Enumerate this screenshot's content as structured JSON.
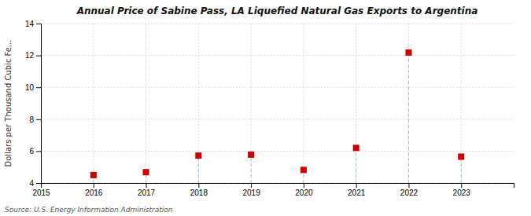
{
  "chart_data": {
    "type": "scatter",
    "title": "Annual Price of Sabine Pass, LA Liquefied Natural Gas Exports to Argentina",
    "y_label": "Dollars per Thousand Cubic Fe...",
    "annotations": [
      "Source: U.S. Energy Information Administration"
    ],
    "x": [
      2016,
      2017,
      2018,
      2019,
      2020,
      2021,
      2022,
      2023
    ],
    "values": [
      4.5,
      4.68,
      5.72,
      5.78,
      4.82,
      6.2,
      12.18,
      5.65
    ],
    "color": "#CC0000",
    "marker": "square",
    "xlim": [
      2015,
      2024
    ],
    "ylim": [
      4,
      14
    ],
    "xticks": [
      2015,
      2016,
      2017,
      2018,
      2019,
      2020,
      2021,
      2022,
      2023
    ],
    "yticks": [
      4,
      6,
      8,
      10,
      12,
      14
    ],
    "grid": true
  }
}
